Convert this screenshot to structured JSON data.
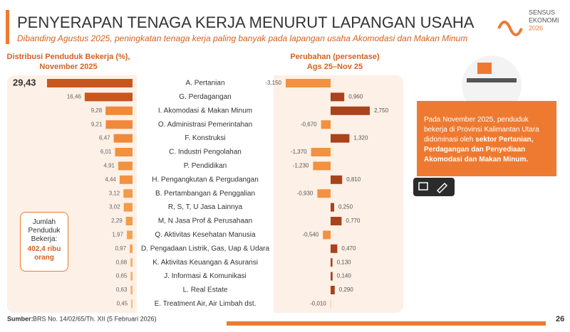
{
  "header": {
    "title": "PENYERAPAN TENAGA KERJA MENURUT LAPANGAN USAHA",
    "subtitle": "Dibanding Agustus 2025, peningkatan tenaga kerja paling banyak pada lapangan usaha Akomodasi dan Makan Minum",
    "logo": [
      "SENSUS",
      "EKONOMI",
      "2026"
    ]
  },
  "chart_data": [
    {
      "type": "hbar_left",
      "title": [
        "Distribusi Penduduk Bekerja (%),",
        "November 2025"
      ],
      "categories": [
        "A. Pertanian",
        "G. Perdagangan",
        "I. Akomodasi & Makan Minum",
        "O. Administrasi Pemerintahan",
        "F. Konstruksi",
        "C. Industri Pengolahan",
        "P. Pendidikan",
        "H. Pengangkutan & Pergudangan",
        "B. Pertambangan & Penggalian",
        "R, S, T, U Jasa Lainnya",
        "M, N Jasa Prof & Perusahaan",
        "Q. Aktivitas Kesehatan Manusia",
        "D. Pengadaan Listrik, Gas, Uap & Udara",
        "K. Aktivitas Keuangan & Asuransi",
        "J. Informasi & Komunikasi",
        "L. Real Estate",
        "E. Treatment Air, Air Limbah dst."
      ],
      "values": [
        29.43,
        16.46,
        9.28,
        9.21,
        6.47,
        6.01,
        4.91,
        4.44,
        3.12,
        3.02,
        2.29,
        1.97,
        0.97,
        0.68,
        0.65,
        0.63,
        0.45
      ],
      "value_labels": [
        "29,43",
        "16,46",
        "9,28",
        "9,21",
        "6,47",
        "6,01",
        "4,91",
        "4,44",
        "3,12",
        "3,02",
        "2,29",
        "1,97",
        "0,97",
        "0,68",
        "0,65",
        "0,63",
        "0,45"
      ],
      "colors": [
        "#c8561e",
        "#c8561e",
        "#f0893b",
        "#f0893b",
        "#f0893b",
        "#f2913f",
        "#f2913f",
        "#f2913f",
        "#f49a48",
        "#f49a48",
        "#f49a48",
        "#f5a352",
        "#f5a352",
        "#f7ad5f",
        "#f7ad5f",
        "#f7ad5f",
        "#f8b56a"
      ]
    },
    {
      "type": "hbar_diverging",
      "title": [
        "Perubahan (persentase)",
        "Ags 25–Nov 25"
      ],
      "values": [
        -3.15,
        0.96,
        2.75,
        -0.67,
        1.32,
        -1.37,
        -1.23,
        0.81,
        -0.93,
        0.25,
        0.77,
        -0.54,
        0.47,
        0.13,
        0.14,
        0.29,
        -0.01
      ],
      "value_labels": [
        "-3,150",
        "0,960",
        "2,750",
        "-0,670",
        "1,320",
        "-1,370",
        "-1,230",
        "0,810",
        "-0,930",
        "0,250",
        "0,770",
        "-0,540",
        "0,470",
        "0,130",
        "0,140",
        "0,290",
        "-0,010"
      ],
      "positive_color": "#a8431c",
      "negative_color": "#f2913f"
    }
  ],
  "total_box": {
    "label": [
      "Jumlah",
      "Penduduk",
      "Bekerja:"
    ],
    "value": [
      "402,4 ribu",
      "orang"
    ]
  },
  "info": {
    "text": "Pada November 2025, penduduk bekerja di Provinsi Kalimantan Utara didominasi oleh ",
    "bold": "sektor Pertanian, Perdagangan dan Penyediaan Akomodasi dan Makan Minum."
  },
  "footer": {
    "source_label": "Sumber:",
    "source": "BRS No. 14/02/65/Th. XII (5 Februari 2026)",
    "page": "26"
  }
}
